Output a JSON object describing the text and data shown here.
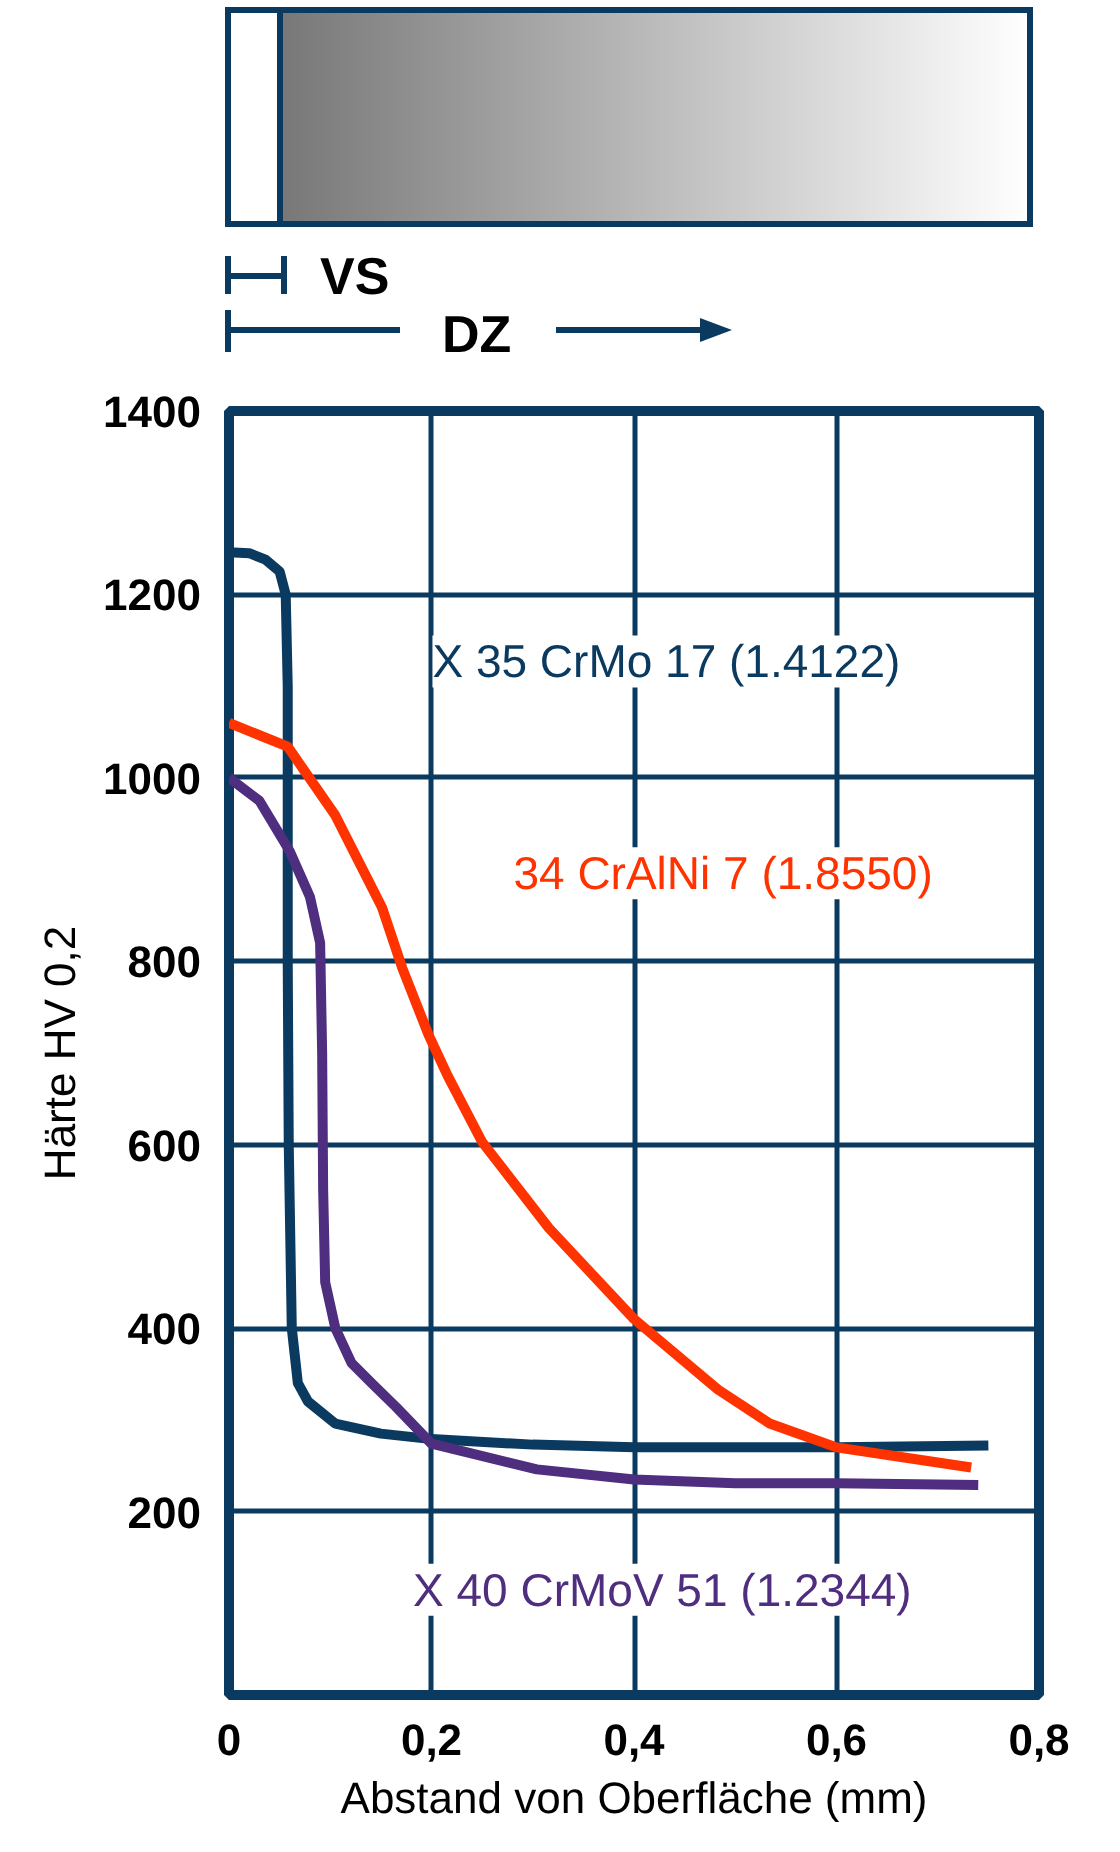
{
  "chart_data": {
    "type": "line",
    "xlabel": "Abstand von Oberfläche (mm)",
    "ylabel": "Härte HV 0,2",
    "annotations": [
      "VS",
      "DZ"
    ],
    "xlim": [
      0,
      0.8
    ],
    "ylim": [
      0,
      1400
    ],
    "xticks": [
      0,
      {
        "value": 0.2,
        "label": "0,2"
      },
      {
        "value": 0.4,
        "label": "0,4"
      },
      {
        "value": 0.6,
        "label": "0,6"
      },
      {
        "value": 0.8,
        "label": "0,8"
      }
    ],
    "yticks": [
      200,
      400,
      600,
      800,
      1000,
      1200,
      1400
    ],
    "grid": true,
    "legend": false,
    "line_style": "solid",
    "marker": "none",
    "series": [
      {
        "name": "X 35 CrMo 17 (1.4122)",
        "color": "#0b3a60",
        "x": [
          0,
          0.02,
          0.036,
          0.05,
          0.056,
          0.058,
          0.058,
          0.059,
          0.062,
          0.068,
          0.078,
          0.105,
          0.15,
          0.2,
          0.3,
          0.4,
          0.6,
          0.75
        ],
        "values": [
          1246,
          1245,
          1238,
          1225,
          1200,
          1100,
          800,
          600,
          400,
          340,
          320,
          296,
          285,
          279,
          273,
          270,
          270,
          272
        ]
      },
      {
        "name": "34 CrAlNi 7 (1.8550)",
        "color": "#ff3300",
        "x": [
          0,
          0.058,
          0.105,
          0.151,
          0.171,
          0.197,
          0.216,
          0.25,
          0.316,
          0.4,
          0.483,
          0.534,
          0.6,
          0.667,
          0.733
        ],
        "values": [
          1060,
          1034,
          959,
          859,
          793,
          720,
          675,
          603,
          509,
          410,
          333,
          296,
          270,
          259,
          248
        ]
      },
      {
        "name": "X 40 CrMoV 51 (1.2344)",
        "color": "#4f2d7f",
        "x": [
          0,
          0.03,
          0.06,
          0.08,
          0.09,
          0.092,
          0.093,
          0.095,
          0.105,
          0.121,
          0.141,
          0.165,
          0.2,
          0.304,
          0.4,
          0.5,
          0.6,
          0.74
        ],
        "values": [
          1000,
          975,
          920,
          870,
          820,
          700,
          550,
          450,
          400,
          362,
          340,
          314,
          274,
          246,
          235,
          231,
          231,
          229
        ]
      }
    ]
  }
}
